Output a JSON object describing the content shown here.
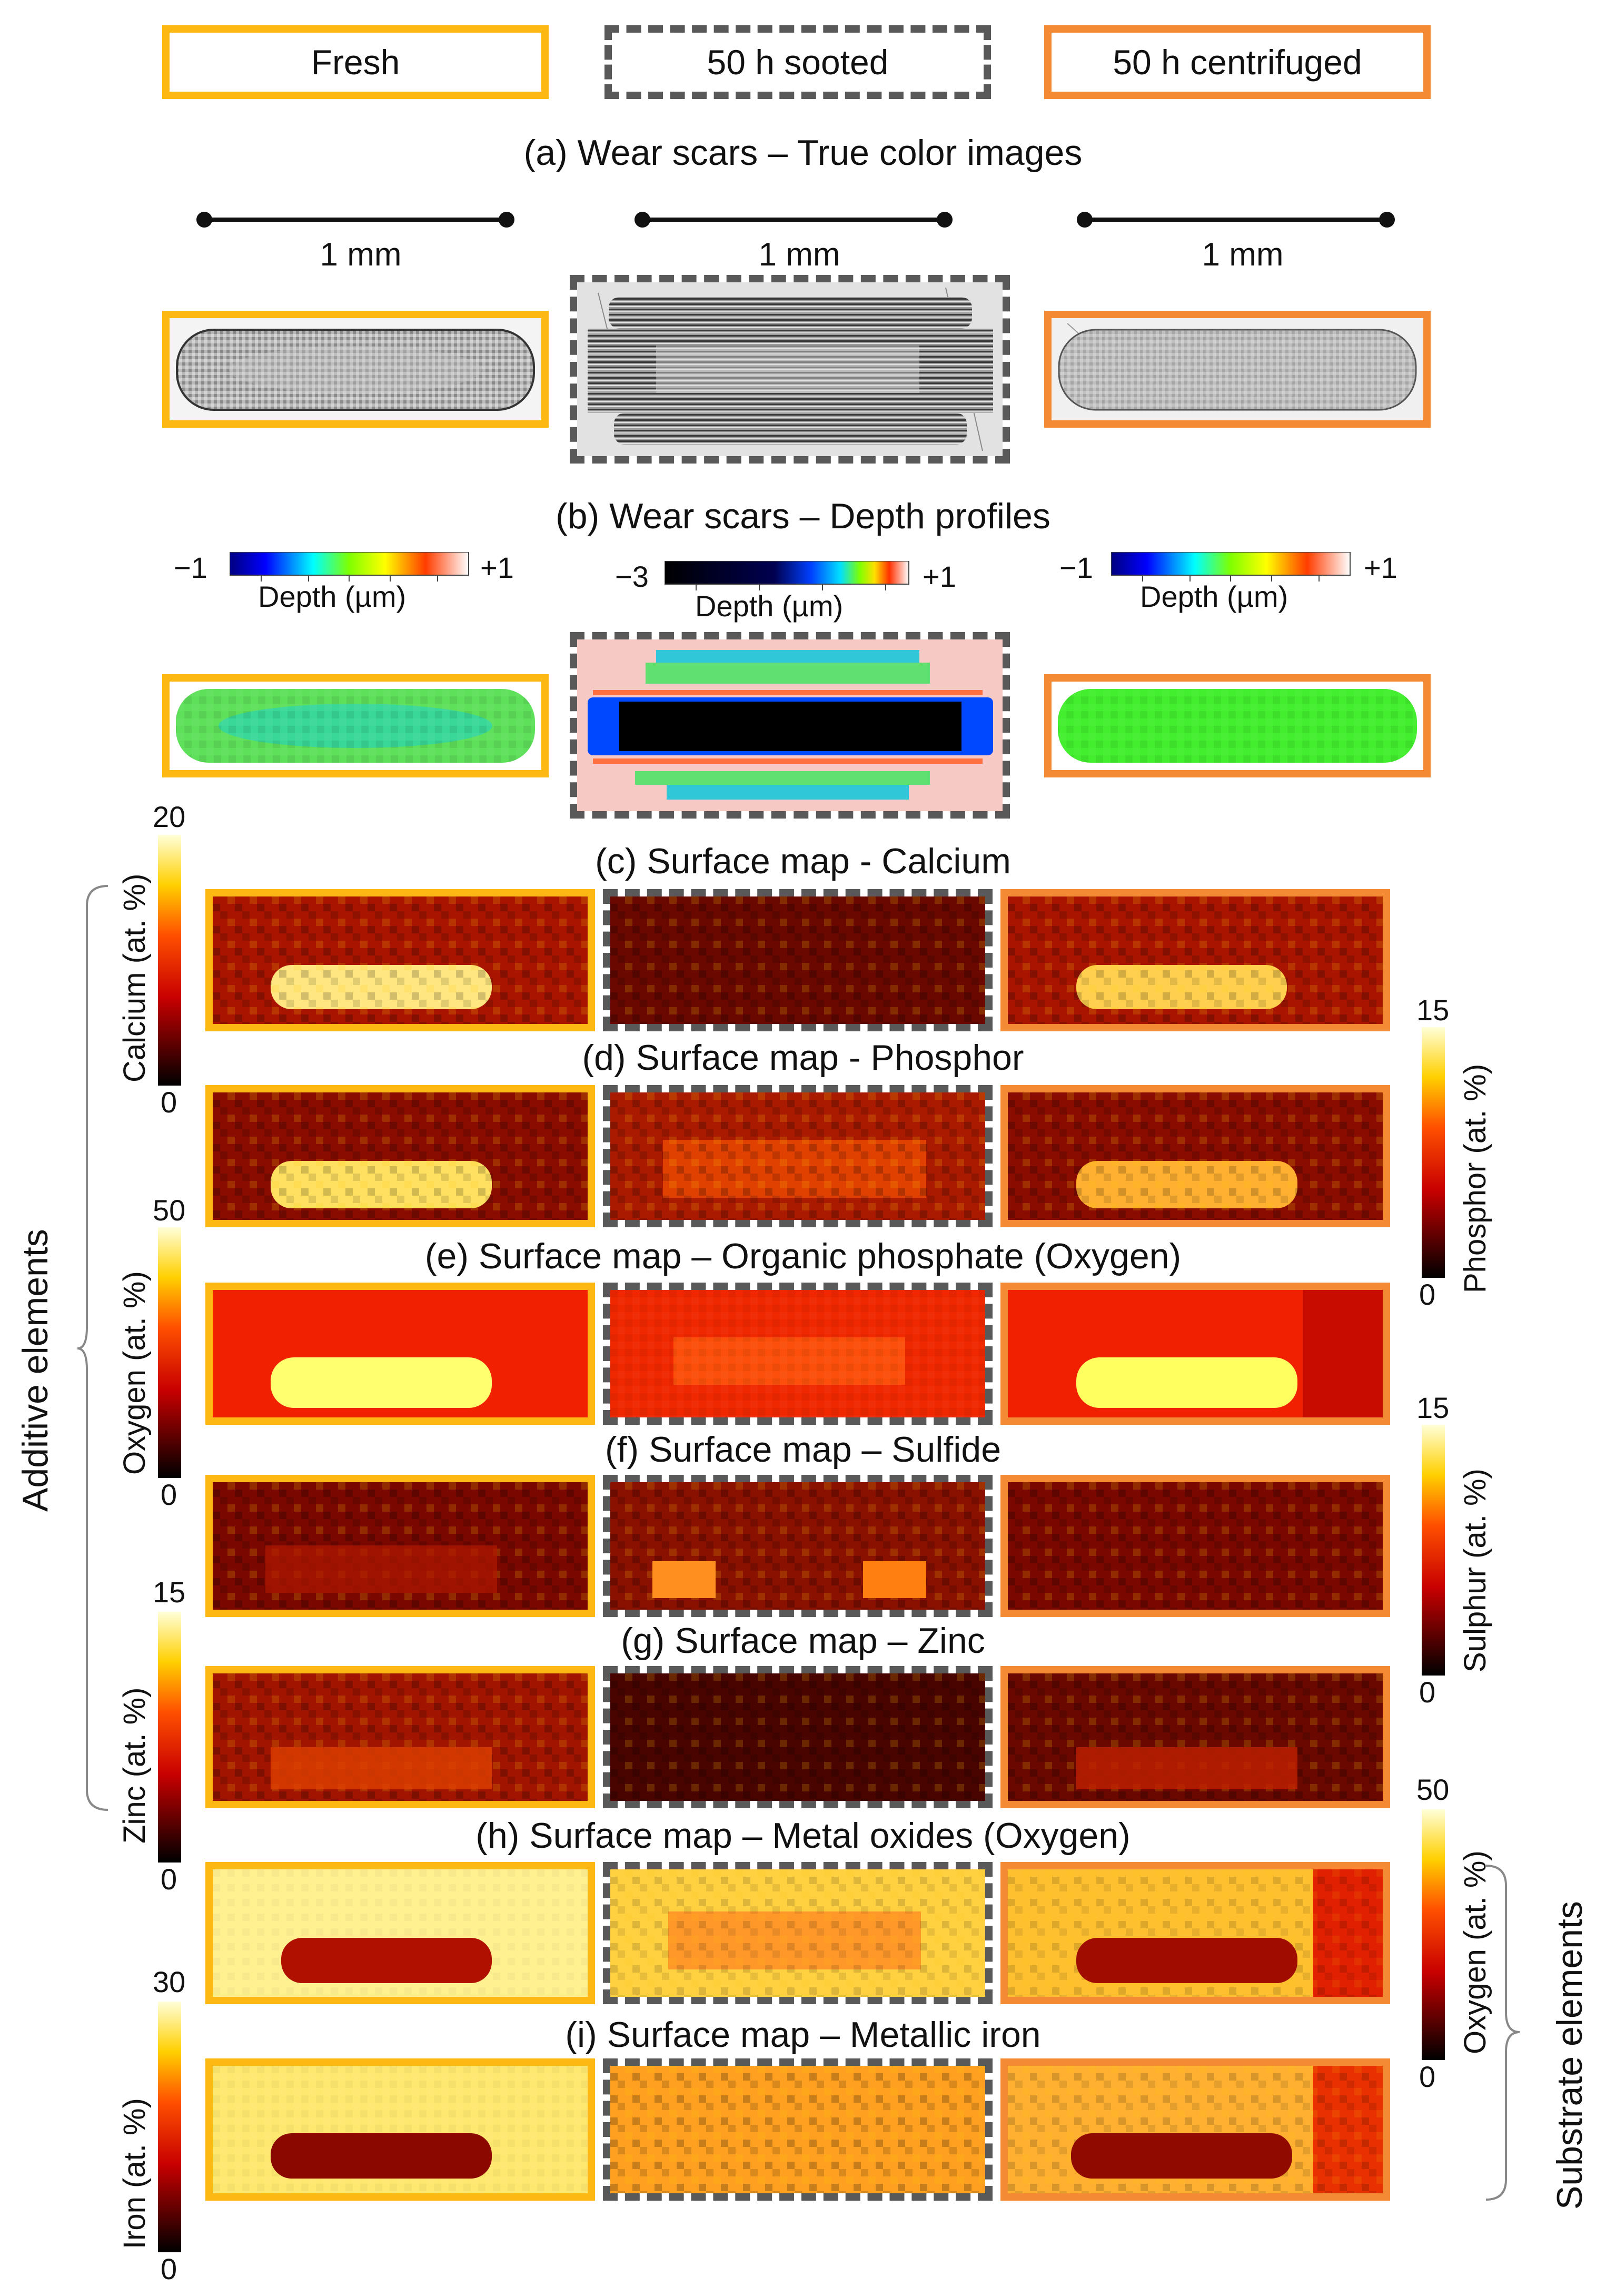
{
  "legend": {
    "fresh": "Fresh",
    "sooted": "50 h sooted",
    "centrifuged": "50 h centrifuged"
  },
  "colors": {
    "fresh": "#FDB813",
    "sooted": "#595959",
    "centrifuged": "#F58A35"
  },
  "sections": {
    "a": "(a) Wear scars – True color images",
    "b": "(b) Wear scars – Depth profiles",
    "c": "(c) Surface map - Calcium",
    "d": "(d) Surface map - Phosphor",
    "e": "(e) Surface map – Organic phosphate (Oxygen)",
    "f": "(f) Surface map – Sulfide",
    "g": "(g) Surface map – Zinc",
    "h": "(h) Surface map – Metal oxides (Oxygen)",
    "i": "(i) Surface map – Metallic iron"
  },
  "scalebar": {
    "label": "1 mm"
  },
  "depth_colorbars": {
    "left": {
      "min": "−1",
      "max": "+1",
      "label": "Depth (µm)"
    },
    "middle": {
      "min": "−3",
      "max": "+1",
      "label": "Depth (µm)"
    },
    "right": {
      "min": "−1",
      "max": "+1",
      "label": "Depth (µm)"
    }
  },
  "element_colorbars": {
    "calcium": {
      "max": "20",
      "min": "0",
      "label": "Calcium (at. %)"
    },
    "phosphor": {
      "max": "15",
      "min": "0",
      "label": "Phosphor (at. %)"
    },
    "oxygen_organic": {
      "max": "50",
      "min": "0",
      "label": "Oxygen (at. %)"
    },
    "sulphur": {
      "max": "15",
      "min": "0",
      "label": "Sulphur (at. %)"
    },
    "zinc": {
      "max": "15",
      "min": "0",
      "label": "Zinc (at. %)"
    },
    "oxygen_metal": {
      "max": "50",
      "min": "0",
      "label": "Oxygen (at. %)"
    },
    "iron": {
      "max": "30",
      "min": "0",
      "label": "Iron (at. %)"
    }
  },
  "groups": {
    "additive": "Additive elements",
    "substrate": "Substrate elements"
  }
}
